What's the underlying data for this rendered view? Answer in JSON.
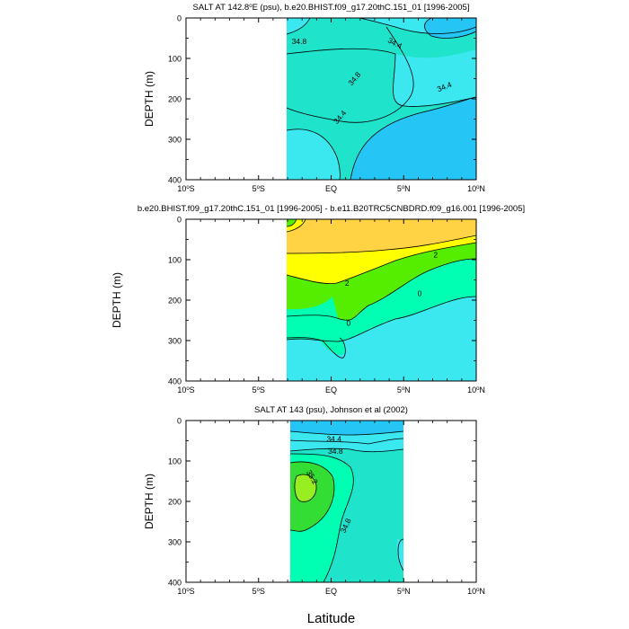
{
  "figure": {
    "xlabel": "Latitude",
    "ylabel": "DEPTH (m)"
  },
  "chart_data": [
    {
      "type": "contour",
      "title": "SALT AT 142.8°E (psu), b.e20.BHIST.f09_g17.20thC.151_01 [1996-2005]",
      "title_text": {
        "pre": "SALT AT 142.8",
        "sup": "o",
        "post": "E (psu), b.e20.BHIST.f09_g17.20thC.151_01 [1996-2005]"
      },
      "ylabel": "DEPTH (m)",
      "xlim": [
        -10,
        10
      ],
      "ylim": [
        400,
        0
      ],
      "data_x_range": [
        -3,
        10
      ],
      "yticks": [
        "0",
        "100",
        "200",
        "300",
        "400"
      ],
      "contour_labels": [
        {
          "text": "34.8",
          "x": -2.2,
          "y": 58,
          "rot": 0
        },
        {
          "text": "34.4",
          "x": 4.4,
          "y": 62,
          "rot": 28
        },
        {
          "text": "34.8",
          "x": 1.6,
          "y": 150,
          "rot": -50
        },
        {
          "text": "34.4",
          "x": 7.8,
          "y": 170,
          "rot": -22
        },
        {
          "text": "34.4",
          "x": 0.6,
          "y": 245,
          "rot": -50
        }
      ],
      "fill_colors": [
        "#25c5f5",
        "#3ce8f0",
        "#20e3cc",
        "#00ffb3"
      ]
    },
    {
      "type": "contour",
      "title": "b.e20.BHIST.f09_g17.20thC.151_01 [1996-2005] - b.e11.B20TRC5CNBDRD.f09_g16.001 [1996-2005]",
      "title_text": {
        "pre": "b.e20.BHIST.f09_g17.20thC.151_01 [1996-2005] - b.e11.B20TRC5CNBDRD.f09_g16.001 [1996-2005]",
        "sup": "",
        "post": ""
      },
      "ylabel": "DEPTH (m)",
      "xlim": [
        -10,
        10
      ],
      "ylim": [
        400,
        0
      ],
      "data_x_range": [
        -3,
        10
      ],
      "yticks": [
        "0",
        "100",
        "200",
        "300",
        "400"
      ],
      "contour_labels": [
        {
          "text": "2",
          "x": 7.2,
          "y": 88,
          "rot": 0
        },
        {
          "text": "2",
          "x": 1.1,
          "y": 158,
          "rot": 0
        },
        {
          "text": "0",
          "x": 6.1,
          "y": 183,
          "rot": 0
        },
        {
          "text": "0",
          "x": 1.2,
          "y": 257,
          "rot": 0
        }
      ],
      "fill_colors": [
        "#ffd343",
        "#ffff00",
        "#55ee00",
        "#00ffb3",
        "#3ce8f0"
      ]
    },
    {
      "type": "contour",
      "title": "SALT AT 143 (psu), Johnson et al (2002)",
      "title_text": {
        "pre": "SALT AT 143 (psu), Johnson et al (2002)",
        "sup": "",
        "post": ""
      },
      "ylabel": "DEPTH (m)",
      "xlim": [
        -10,
        10
      ],
      "ylim": [
        400,
        0
      ],
      "data_x_range": [
        -2.6,
        5
      ],
      "yticks": [
        "0",
        "100",
        "200",
        "300",
        "400"
      ],
      "contour_labels": [
        {
          "text": "34.4",
          "x": 0.2,
          "y": 45,
          "rot": 0
        },
        {
          "text": "34.8",
          "x": 0.3,
          "y": 75,
          "rot": 0
        },
        {
          "text": "35.2",
          "x": -1.3,
          "y": 140,
          "rot": 60
        },
        {
          "text": "34.8",
          "x": 1.0,
          "y": 260,
          "rot": -65
        }
      ],
      "fill_colors": [
        "#25c5f5",
        "#3ce8f0",
        "#20e3cc",
        "#00ffb3",
        "#33dd33",
        "#99ee22"
      ]
    }
  ],
  "xticks": [
    "10°S",
    "5°S",
    "EQ",
    "5°N",
    "10°N"
  ],
  "xtick_text": [
    {
      "pre": "10",
      "sup": "o",
      "post": "S"
    },
    {
      "pre": "5",
      "sup": "o",
      "post": "S"
    },
    {
      "pre": "EQ",
      "sup": "",
      "post": ""
    },
    {
      "pre": "5",
      "sup": "o",
      "post": "N"
    },
    {
      "pre": "10",
      "sup": "o",
      "post": "N"
    }
  ]
}
